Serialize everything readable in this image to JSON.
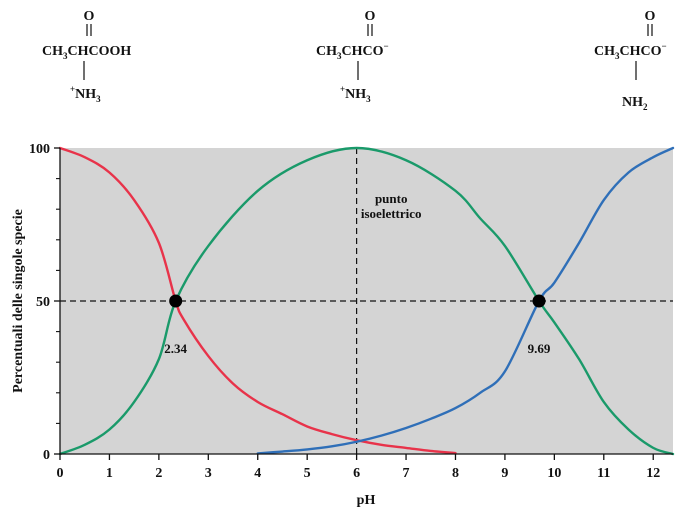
{
  "structures": [
    {
      "oxygen": "O",
      "main_pre": "CH",
      "main_sub": "3",
      "main_post": "CHCOOH",
      "main_sup": "",
      "amine_sup": "+",
      "amine_pre": "NH",
      "amine_sub": "3"
    },
    {
      "oxygen": "O",
      "main_pre": "CH",
      "main_sub": "3",
      "main_post": "CHCO",
      "main_sup": "−",
      "amine_sup": "+",
      "amine_pre": "NH",
      "amine_sub": "3"
    },
    {
      "oxygen": "O",
      "main_pre": "CH",
      "main_sub": "3",
      "main_post": "CHCO",
      "main_sup": "−",
      "amine_sup": "",
      "amine_pre": "NH",
      "amine_sub": "2"
    }
  ],
  "chart_data": {
    "type": "line",
    "title": "",
    "xlabel": "pH",
    "ylabel": "Percentuali delle singole specie",
    "xlim": [
      0,
      12.4
    ],
    "ylim": [
      0,
      100
    ],
    "x_ticks": [
      0,
      1,
      2,
      3,
      4,
      5,
      6,
      7,
      8,
      9,
      10,
      11,
      12
    ],
    "y_ticks_labeled": [
      0,
      50,
      100
    ],
    "y_minor_ticks": [
      10,
      20,
      30,
      40,
      60,
      70,
      80,
      90
    ],
    "background": "#d4d4d4",
    "series": [
      {
        "color": "#e8334a",
        "x": [
          0,
          0.5,
          1,
          1.5,
          2,
          2.34,
          2.5,
          3,
          3.5,
          4,
          4.5,
          5,
          5.5,
          6,
          6.5,
          7,
          7.5,
          8
        ],
        "y": [
          100,
          97,
          92,
          83,
          69,
          50,
          44,
          32,
          23,
          17,
          13,
          9,
          6.5,
          4.5,
          3,
          2,
          1,
          0.3
        ]
      },
      {
        "color": "#1a9a6a",
        "x": [
          0,
          0.5,
          1,
          1.5,
          2,
          2.34,
          3,
          4,
          5,
          6,
          7,
          8,
          8.5,
          9,
          9.69,
          10,
          10.5,
          11,
          11.5,
          12,
          12.4
        ],
        "y": [
          0,
          3,
          8,
          17,
          31,
          50,
          68,
          86,
          96,
          100,
          96,
          86,
          77,
          68,
          50,
          43,
          31,
          17,
          8,
          2,
          0
        ]
      },
      {
        "color": "#2f6fb8",
        "x": [
          4,
          4.5,
          5,
          5.5,
          6,
          6.5,
          7,
          7.5,
          8,
          8.5,
          9,
          9.69,
          10,
          10.5,
          11,
          11.5,
          12,
          12.4
        ],
        "y": [
          0.2,
          0.8,
          1.5,
          2.5,
          4,
          6,
          8.5,
          11.5,
          15,
          20,
          27,
          50,
          56,
          69,
          83,
          92,
          97,
          100
        ]
      }
    ],
    "reference_lines": {
      "horizontal_y": 50,
      "vertical_x": 6
    },
    "points": [
      {
        "x": 2.34,
        "y": 50,
        "label": "2.34"
      },
      {
        "x": 9.69,
        "y": 50,
        "label": "9.69"
      }
    ],
    "annotation": {
      "x": 6.7,
      "y": 80,
      "line1": "punto",
      "line2": "isoelettrico"
    },
    "grid": false
  }
}
